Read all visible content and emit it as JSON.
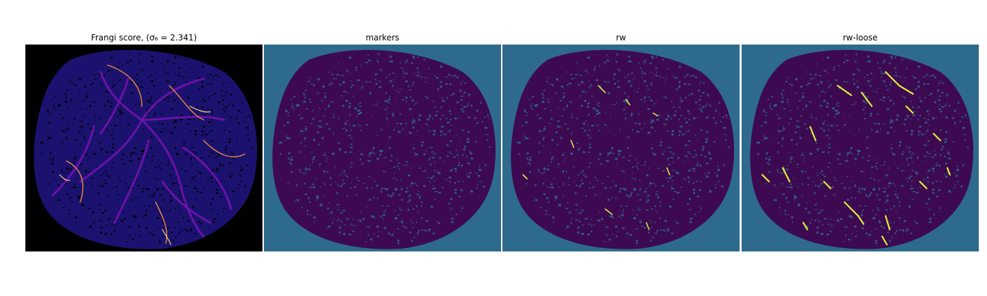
{
  "figure": {
    "panels": [
      {
        "title": "Frangi score, (σ₆ = 2.341)",
        "colormap": "inferno",
        "background": "#000000",
        "body": "#1b1270",
        "vessel_low": "#6a12a8",
        "vessel_high": "#f48a3c",
        "vessel_peak": "#fbe06a"
      },
      {
        "title": "markers",
        "colormap": "viridis",
        "background": "#2e6a8c",
        "body": "#3d0a52",
        "vessel": "#3d0a52",
        "highlight": null
      },
      {
        "title": "rw",
        "colormap": "viridis",
        "background": "#2e6a8c",
        "body": "#3d0a52",
        "vessel": "#3d0a52",
        "highlight": "#dff040"
      },
      {
        "title": "rw-loose",
        "colormap": "viridis",
        "background": "#2e6a8c",
        "body": "#3d0a52",
        "vessel": "#3d0a52",
        "highlight": "#e6f23a"
      }
    ]
  }
}
